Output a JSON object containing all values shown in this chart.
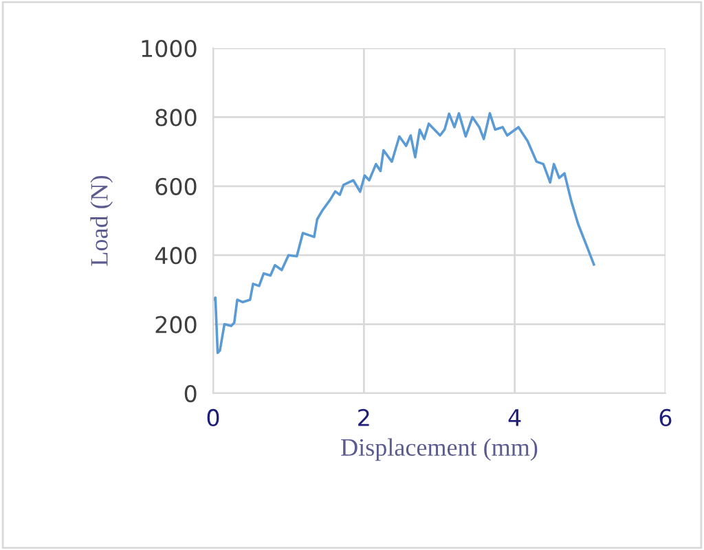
{
  "chart_data": {
    "type": "line",
    "xlabel": "Displacement (mm)",
    "ylabel": "Load (N)",
    "xlim": [
      0,
      6
    ],
    "ylim": [
      0,
      1000
    ],
    "xticks": [
      0,
      2,
      4,
      6
    ],
    "yticks": [
      0,
      200,
      400,
      600,
      800,
      1000
    ],
    "grid": true,
    "marker": "none",
    "line_style": "solid",
    "legend": false,
    "series": [
      {
        "color": "#5b9bd5",
        "x": [
          0.0,
          0.03,
          0.06,
          0.09,
          0.15,
          0.24,
          0.28,
          0.32,
          0.39,
          0.49,
          0.53,
          0.61,
          0.67,
          0.76,
          0.82,
          0.91,
          1.0,
          1.11,
          1.19,
          1.34,
          1.38,
          1.45,
          1.55,
          1.62,
          1.68,
          1.73,
          1.86,
          1.95,
          2.01,
          2.07,
          2.16,
          2.22,
          2.26,
          2.37,
          2.47,
          2.56,
          2.62,
          2.68,
          2.74,
          2.8,
          2.86,
          3.01,
          3.07,
          3.13,
          3.2,
          3.26,
          3.35,
          3.44,
          3.53,
          3.59,
          3.67,
          3.74,
          3.84,
          3.9,
          4.05,
          4.17,
          4.29,
          4.38,
          4.47,
          4.52,
          4.59,
          4.66,
          4.75,
          4.84,
          4.96,
          5.05
        ],
        "values": [
          270,
          277,
          117,
          124,
          200,
          195,
          204,
          271,
          264,
          271,
          317,
          311,
          347,
          341,
          371,
          357,
          400,
          397,
          464,
          453,
          504,
          530,
          560,
          585,
          575,
          604,
          617,
          584,
          631,
          617,
          664,
          644,
          704,
          671,
          744,
          717,
          747,
          684,
          764,
          737,
          781,
          747,
          764,
          810,
          771,
          811,
          744,
          800,
          771,
          737,
          811,
          764,
          771,
          747,
          771,
          731,
          671,
          664,
          611,
          664,
          624,
          637,
          557,
          491,
          424,
          373
        ]
      }
    ]
  }
}
